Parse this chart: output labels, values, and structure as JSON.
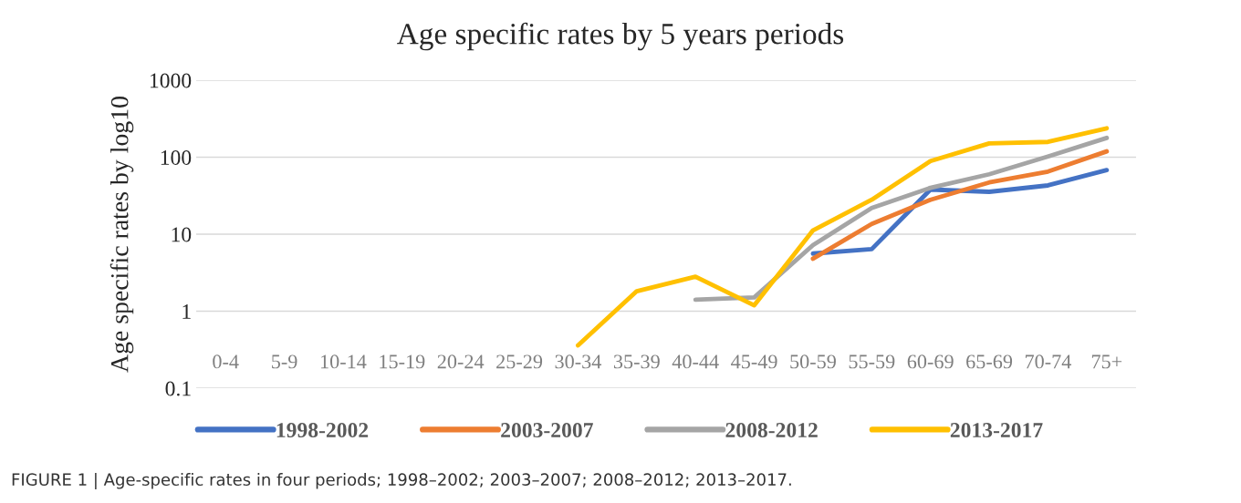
{
  "chart_data": {
    "type": "line",
    "title": "Age specific rates by 5 years periods",
    "ylabel": "Age specific rates by log10",
    "categories": [
      "0-4",
      "5-9",
      "10-14",
      "15-19",
      "20-24",
      "25-29",
      "30-34",
      "35-39",
      "40-44",
      "45-49",
      "50-59",
      "55-59",
      "60-69",
      "65-69",
      "70-74",
      "75+"
    ],
    "series": [
      {
        "name": "1998-2002",
        "color": "#4472c4",
        "values": [
          null,
          null,
          null,
          null,
          null,
          null,
          null,
          null,
          null,
          null,
          5.6,
          6.4,
          38,
          35.5,
          43,
          68
        ]
      },
      {
        "name": "2003-2007",
        "color": "#ed7d31",
        "values": [
          null,
          null,
          null,
          null,
          null,
          null,
          null,
          null,
          null,
          null,
          4.8,
          13.6,
          28,
          47,
          65,
          119
        ]
      },
      {
        "name": "2008-2012",
        "color": "#a5a5a5",
        "values": [
          null,
          null,
          null,
          null,
          null,
          null,
          null,
          null,
          1.41,
          1.51,
          7.2,
          21.9,
          40,
          60,
          102,
          178
        ]
      },
      {
        "name": "2013-2017",
        "color": "#ffc000",
        "values": [
          null,
          null,
          null,
          null,
          null,
          null,
          0.36,
          1.82,
          2.8,
          1.19,
          11.2,
          28,
          89,
          151,
          158,
          237
        ]
      }
    ],
    "log": true,
    "ylim": [
      0.1,
      1000
    ],
    "yticks": [
      0.1,
      1,
      10,
      100,
      1000
    ],
    "grid": "y",
    "legend": "bottom",
    "marker": "none",
    "line_style": "solid",
    "annotations": [
      "FIGURE 1 | Age-specific rates in four periods; 1998–2002; 2003–2007; 2008–2012; 2013–2017."
    ]
  }
}
